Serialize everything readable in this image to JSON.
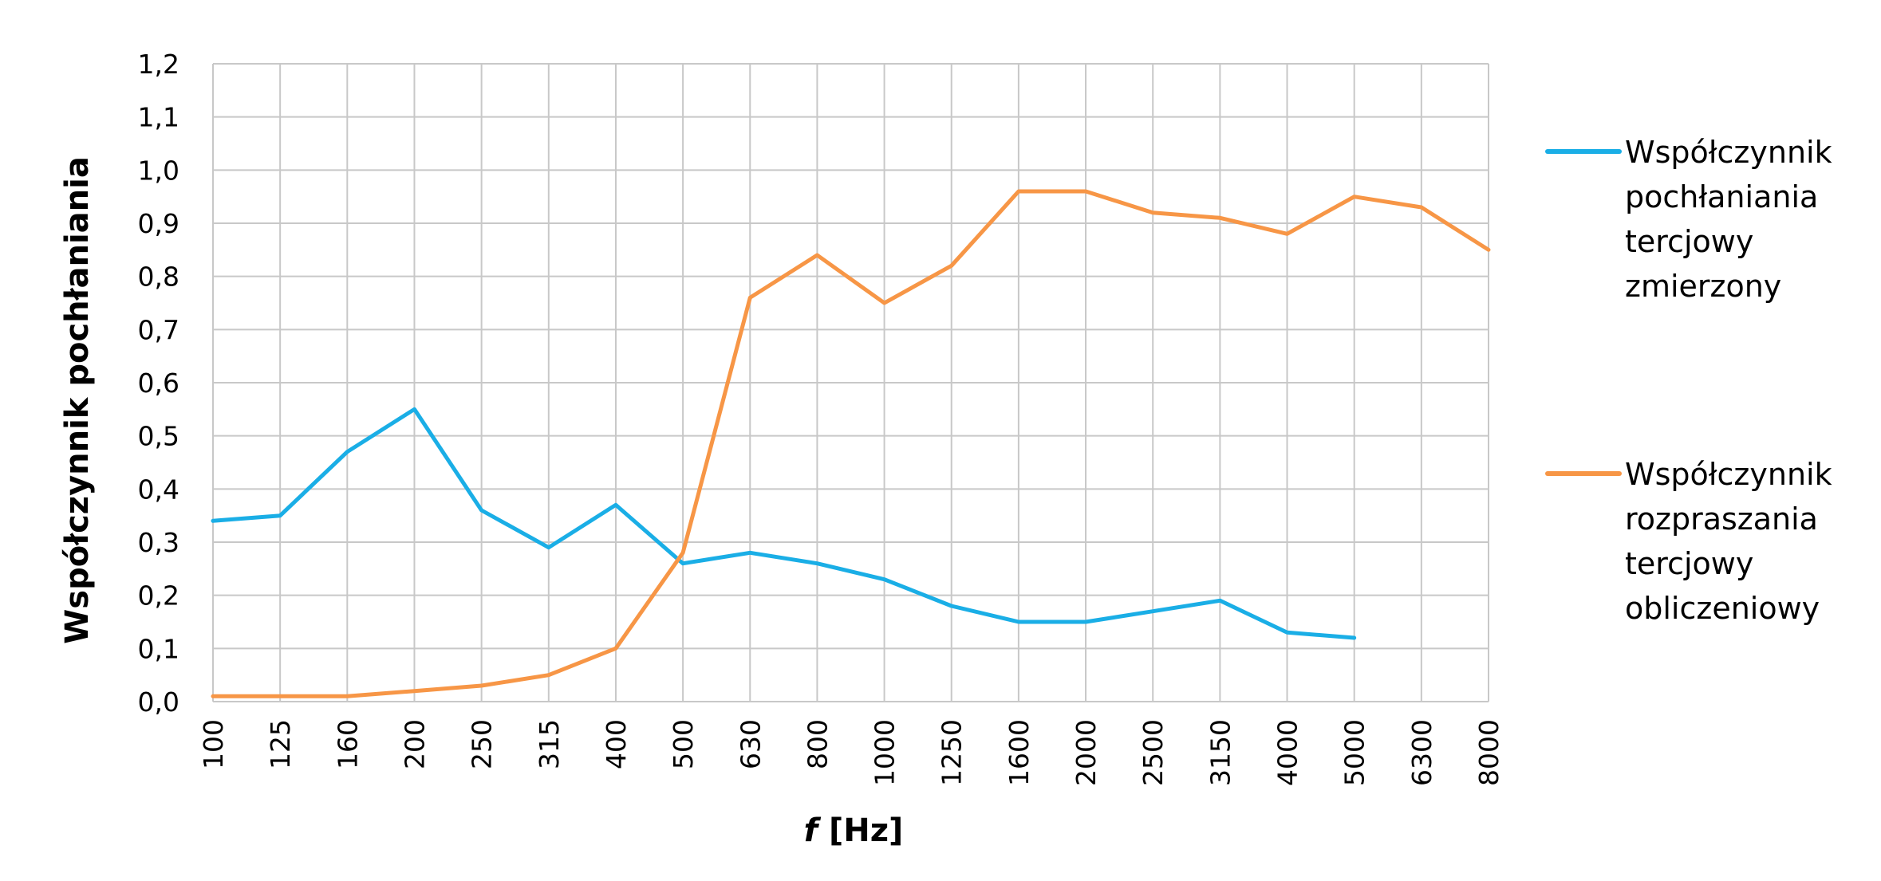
{
  "chart_data": {
    "type": "line",
    "xlabel_symbol": "f",
    "xlabel_unit": " [Hz]",
    "ylabel": "Współczynnik pochłaniania",
    "categories": [
      "100",
      "125",
      "160",
      "200",
      "250",
      "315",
      "400",
      "500",
      "630",
      "800",
      "1000",
      "1250",
      "1600",
      "2000",
      "2500",
      "3150",
      "4000",
      "5000",
      "6300",
      "8000"
    ],
    "ylim": [
      0,
      1.2
    ],
    "yticks": [
      "0,0",
      "0,1",
      "0,2",
      "0,3",
      "0,4",
      "0,5",
      "0,6",
      "0,7",
      "0,8",
      "0,9",
      "1,0",
      "1,1",
      "1,2"
    ],
    "grid": true,
    "legend_position": "right",
    "series": [
      {
        "name_lines": [
          "Współczynnik",
          "pochłaniania",
          "tercjowy",
          "zmierzony"
        ],
        "color": "#1aaee6",
        "values": [
          0.34,
          0.35,
          0.47,
          0.55,
          0.36,
          0.29,
          0.37,
          0.26,
          0.28,
          0.26,
          0.23,
          0.18,
          0.15,
          0.15,
          0.17,
          0.19,
          0.13,
          0.12,
          null,
          null
        ]
      },
      {
        "name_lines": [
          "Współczynnik",
          "rozpraszania",
          "tercjowy",
          "obliczeniowy"
        ],
        "color": "#f79646",
        "values": [
          0.01,
          0.01,
          0.01,
          0.02,
          0.03,
          0.05,
          0.1,
          0.28,
          0.76,
          0.84,
          0.75,
          0.82,
          0.96,
          0.96,
          0.92,
          0.91,
          0.88,
          0.95,
          0.93,
          0.85
        ]
      }
    ]
  }
}
